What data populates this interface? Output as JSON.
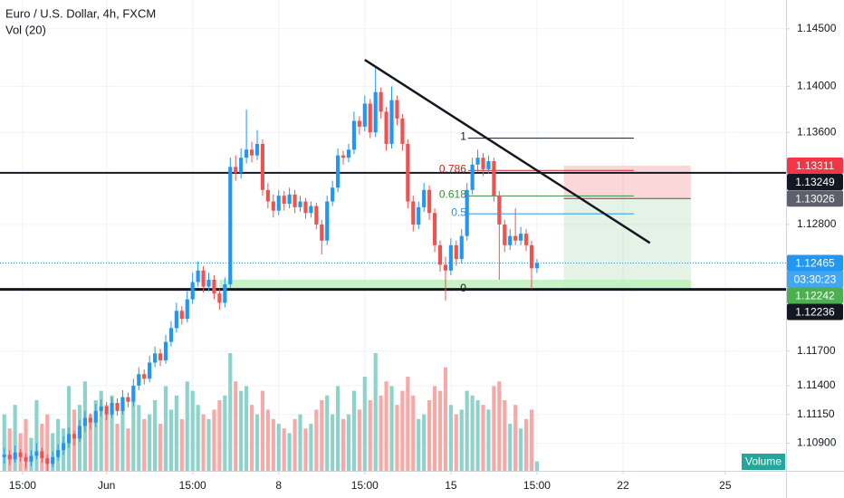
{
  "chart_data": {
    "type": "candlestick",
    "title": "Euro / U.S. Dollar, 4h, FXCM",
    "indicator": "Vol (20)",
    "volume_badge": "Volume",
    "up_color": "#2196f3",
    "down_color": "#ef5350",
    "volume_up_color": "#8dd3cc",
    "volume_down_color": "#f7a9a7",
    "xlim": [
      -0.8,
      145.3
    ],
    "ylim": [
      1.1066,
      1.1475
    ],
    "yticks": [
      {
        "value": 1.145,
        "label": "1.14500"
      },
      {
        "value": 1.14,
        "label": "1.14000"
      },
      {
        "value": 1.136,
        "label": "1.13600"
      },
      {
        "value": 1.128,
        "label": "1.12800"
      },
      {
        "value": 1.117,
        "label": "1.11700"
      },
      {
        "value": 1.114,
        "label": "1.11400"
      },
      {
        "value": 1.1115,
        "label": "1.11150"
      },
      {
        "value": 1.109,
        "label": "1.10900"
      }
    ],
    "xticks": [
      {
        "value": 3.4,
        "label": "15:00"
      },
      {
        "value": 19,
        "label": "Jun"
      },
      {
        "value": 35,
        "label": "15:00"
      },
      {
        "value": 51,
        "label": "8"
      },
      {
        "value": 67,
        "label": "15:00"
      },
      {
        "value": 83,
        "label": "15"
      },
      {
        "value": 99,
        "label": "15:00"
      },
      {
        "value": 115,
        "label": "22"
      },
      {
        "value": 134,
        "label": "25"
      }
    ],
    "candles": [
      [
        1.1078,
        1.1086,
        1.1072,
        1.108,
        60
      ],
      [
        1.108,
        1.1084,
        1.1071,
        1.1076,
        45
      ],
      [
        1.1076,
        1.1088,
        1.1073,
        1.1082,
        70
      ],
      [
        1.1082,
        1.1085,
        1.1074,
        1.1078,
        40
      ],
      [
        1.1078,
        1.1081,
        1.1068,
        1.1074,
        55
      ],
      [
        1.1074,
        1.1084,
        1.107,
        1.1079,
        35
      ],
      [
        1.1079,
        1.109,
        1.1076,
        1.1083,
        75
      ],
      [
        1.1083,
        1.1086,
        1.1073,
        1.1077,
        50
      ],
      [
        1.1077,
        1.108,
        1.1066,
        1.1072,
        60
      ],
      [
        1.1072,
        1.1083,
        1.1069,
        1.1078,
        40
      ],
      [
        1.1078,
        1.1089,
        1.1075,
        1.1084,
        55
      ],
      [
        1.1084,
        1.1096,
        1.108,
        1.109,
        45
      ],
      [
        1.109,
        1.1104,
        1.1086,
        1.1098,
        90
      ],
      [
        1.1098,
        1.1101,
        1.1088,
        1.1094,
        65
      ],
      [
        1.1094,
        1.111,
        1.1091,
        1.1105,
        70
      ],
      [
        1.1105,
        1.1118,
        1.11,
        1.1112,
        95
      ],
      [
        1.1112,
        1.1116,
        1.1102,
        1.1108,
        60
      ],
      [
        1.1108,
        1.1124,
        1.1104,
        1.1118,
        75
      ],
      [
        1.1118,
        1.1128,
        1.1113,
        1.1122,
        85
      ],
      [
        1.1122,
        1.1126,
        1.111,
        1.1115,
        70
      ],
      [
        1.1115,
        1.113,
        1.1112,
        1.1125,
        80
      ],
      [
        1.1125,
        1.1129,
        1.1114,
        1.1118,
        50
      ],
      [
        1.1118,
        1.1136,
        1.1115,
        1.113,
        65
      ],
      [
        1.113,
        1.1134,
        1.1121,
        1.1126,
        45
      ],
      [
        1.1126,
        1.1146,
        1.1122,
        1.114,
        85
      ],
      [
        1.114,
        1.1156,
        1.1136,
        1.115,
        70
      ],
      [
        1.115,
        1.1154,
        1.1141,
        1.1146,
        55
      ],
      [
        1.1146,
        1.1166,
        1.1143,
        1.116,
        60
      ],
      [
        1.116,
        1.1174,
        1.1156,
        1.1168,
        75
      ],
      [
        1.1168,
        1.1172,
        1.1157,
        1.1162,
        50
      ],
      [
        1.1162,
        1.1184,
        1.1159,
        1.1178,
        90
      ],
      [
        1.1178,
        1.1196,
        1.1174,
        1.119,
        65
      ],
      [
        1.119,
        1.1212,
        1.1186,
        1.1205,
        80
      ],
      [
        1.1205,
        1.1209,
        1.1193,
        1.1198,
        55
      ],
      [
        1.1198,
        1.1222,
        1.1195,
        1.1215,
        95
      ],
      [
        1.1215,
        1.1238,
        1.1211,
        1.123,
        85
      ],
      [
        1.123,
        1.1248,
        1.1226,
        1.124,
        70
      ],
      [
        1.124,
        1.1244,
        1.1221,
        1.1226,
        60
      ],
      [
        1.1226,
        1.1238,
        1.1222,
        1.1232,
        55
      ],
      [
        1.1232,
        1.1236,
        1.1215,
        1.122,
        65
      ],
      [
        1.122,
        1.1224,
        1.1206,
        1.1212,
        75
      ],
      [
        1.1212,
        1.1234,
        1.1208,
        1.1228,
        80
      ],
      [
        1.1228,
        1.1338,
        1.1225,
        1.133,
        125
      ],
      [
        1.133,
        1.134,
        1.1318,
        1.1325,
        95
      ],
      [
        1.1325,
        1.1346,
        1.132,
        1.1338,
        85
      ],
      [
        1.1338,
        1.138,
        1.1333,
        1.1345,
        90
      ],
      [
        1.1345,
        1.1352,
        1.1334,
        1.134,
        70
      ],
      [
        1.134,
        1.1362,
        1.1336,
        1.135,
        60
      ],
      [
        1.135,
        1.1354,
        1.1305,
        1.131,
        85
      ],
      [
        1.131,
        1.1316,
        1.1294,
        1.13,
        65
      ],
      [
        1.13,
        1.1306,
        1.1286,
        1.1292,
        55
      ],
      [
        1.1292,
        1.131,
        1.1288,
        1.1305,
        50
      ],
      [
        1.1305,
        1.1309,
        1.1292,
        1.1298,
        45
      ],
      [
        1.1298,
        1.1312,
        1.1294,
        1.1306,
        40
      ],
      [
        1.1306,
        1.131,
        1.129,
        1.1295,
        55
      ],
      [
        1.1295,
        1.1305,
        1.1291,
        1.13,
        60
      ],
      [
        1.13,
        1.1303,
        1.1285,
        1.129,
        45
      ],
      [
        1.129,
        1.13,
        1.1286,
        1.1296,
        50
      ],
      [
        1.1296,
        1.1299,
        1.1276,
        1.128,
        65
      ],
      [
        1.128,
        1.1284,
        1.1254,
        1.1266,
        75
      ],
      [
        1.1266,
        1.1305,
        1.1262,
        1.13,
        80
      ],
      [
        1.13,
        1.1318,
        1.1296,
        1.1312,
        60
      ],
      [
        1.1312,
        1.1346,
        1.1308,
        1.134,
        90
      ],
      [
        1.134,
        1.1344,
        1.1332,
        1.1338,
        55
      ],
      [
        1.1338,
        1.135,
        1.1334,
        1.1345,
        60
      ],
      [
        1.1345,
        1.1378,
        1.1341,
        1.137,
        85
      ],
      [
        1.137,
        1.1374,
        1.1358,
        1.1365,
        65
      ],
      [
        1.1365,
        1.1392,
        1.1361,
        1.1385,
        100
      ],
      [
        1.1385,
        1.1389,
        1.1355,
        1.136,
        75
      ],
      [
        1.136,
        1.1416,
        1.1356,
        1.1395,
        125
      ],
      [
        1.1395,
        1.1399,
        1.1372,
        1.1378,
        80
      ],
      [
        1.1378,
        1.1382,
        1.1344,
        1.135,
        95
      ],
      [
        1.135,
        1.14,
        1.1346,
        1.1388,
        90
      ],
      [
        1.1388,
        1.1392,
        1.1366,
        1.1372,
        70
      ],
      [
        1.1372,
        1.1376,
        1.1344,
        1.135,
        85
      ],
      [
        1.135,
        1.1354,
        1.1294,
        1.13,
        100
      ],
      [
        1.13,
        1.1305,
        1.1274,
        1.128,
        80
      ],
      [
        1.128,
        1.13,
        1.1276,
        1.1295,
        55
      ],
      [
        1.1295,
        1.1316,
        1.1291,
        1.131,
        60
      ],
      [
        1.131,
        1.1314,
        1.1284,
        1.129,
        75
      ],
      [
        1.129,
        1.1294,
        1.1256,
        1.1262,
        90
      ],
      [
        1.1262,
        1.1266,
        1.1239,
        1.1245,
        85
      ],
      [
        1.1245,
        1.1252,
        1.1214,
        1.124,
        110
      ],
      [
        1.124,
        1.1268,
        1.1236,
        1.1262,
        70
      ],
      [
        1.1262,
        1.1266,
        1.1244,
        1.125,
        60
      ],
      [
        1.125,
        1.1276,
        1.1246,
        1.127,
        65
      ],
      [
        1.127,
        1.1316,
        1.1266,
        1.131,
        85
      ],
      [
        1.131,
        1.1338,
        1.1306,
        1.1332,
        80
      ],
      [
        1.1332,
        1.1345,
        1.1326,
        1.1338,
        75
      ],
      [
        1.1338,
        1.1342,
        1.1322,
        1.1328,
        70
      ],
      [
        1.1328,
        1.134,
        1.1324,
        1.1335,
        65
      ],
      [
        1.1335,
        1.1338,
        1.13,
        1.1305,
        90
      ],
      [
        1.1305,
        1.1309,
        1.1232,
        1.128,
        95
      ],
      [
        1.128,
        1.1284,
        1.1256,
        1.1262,
        75
      ],
      [
        1.1262,
        1.1276,
        1.1258,
        1.127,
        50
      ],
      [
        1.127,
        1.1294,
        1.1262,
        1.1266,
        70
      ],
      [
        1.1266,
        1.1278,
        1.1262,
        1.1272,
        45
      ],
      [
        1.1272,
        1.1276,
        1.1257,
        1.1262,
        55
      ],
      [
        1.1262,
        1.1266,
        1.1224,
        1.1242,
        65
      ],
      [
        1.1242,
        1.125,
        1.1238,
        1.12465,
        10
      ]
    ],
    "horizontal_lines": [
      {
        "value": 1.13249,
        "color": "#131722",
        "width": 2
      },
      {
        "value": 1.12236,
        "color": "#131722",
        "width": 3
      }
    ],
    "trendline": {
      "from": [
        67,
        1.1423
      ],
      "to": [
        120,
        1.1264
      ],
      "color": "#131722"
    },
    "support_zone": {
      "x": [
        40,
        127.6
      ],
      "low": 1.12236,
      "high": 1.1232,
      "color": "#b9f0b9"
    },
    "fib": {
      "x": [
        86.2,
        117
      ],
      "levels": [
        {
          "label": "1",
          "value": 1.1355,
          "color": "#131722"
        },
        {
          "label": "0.786",
          "value": 1.13269,
          "color": "#c62828"
        },
        {
          "label": "0.618",
          "value": 1.13048,
          "color": "#388e3c"
        },
        {
          "label": "0.5",
          "value": 1.12893,
          "color": "#2196f3"
        },
        {
          "label": "0",
          "value": 1.12236,
          "color": "#131722"
        }
      ]
    },
    "position": {
      "x": [
        104,
        127.6
      ],
      "stop": 1.13311,
      "entry": 1.13026,
      "target": 1.12242
    },
    "price_tags": [
      {
        "value": 1.13311,
        "label": "1.13311",
        "color": "#f23645"
      },
      {
        "value": 1.13249,
        "label": "1.13249",
        "color": "#131722"
      },
      {
        "value": 1.13026,
        "label": "1.13026",
        "color": "#5d606b"
      },
      {
        "value": 1.12465,
        "label": "1.12465",
        "color": "#2196f3"
      },
      {
        "value": 1.12242,
        "label": "1.12242",
        "color": "#4caf50"
      },
      {
        "value": 1.12236,
        "label": "1.12236",
        "color": "#131722"
      }
    ],
    "countdown": "03:30:23"
  }
}
